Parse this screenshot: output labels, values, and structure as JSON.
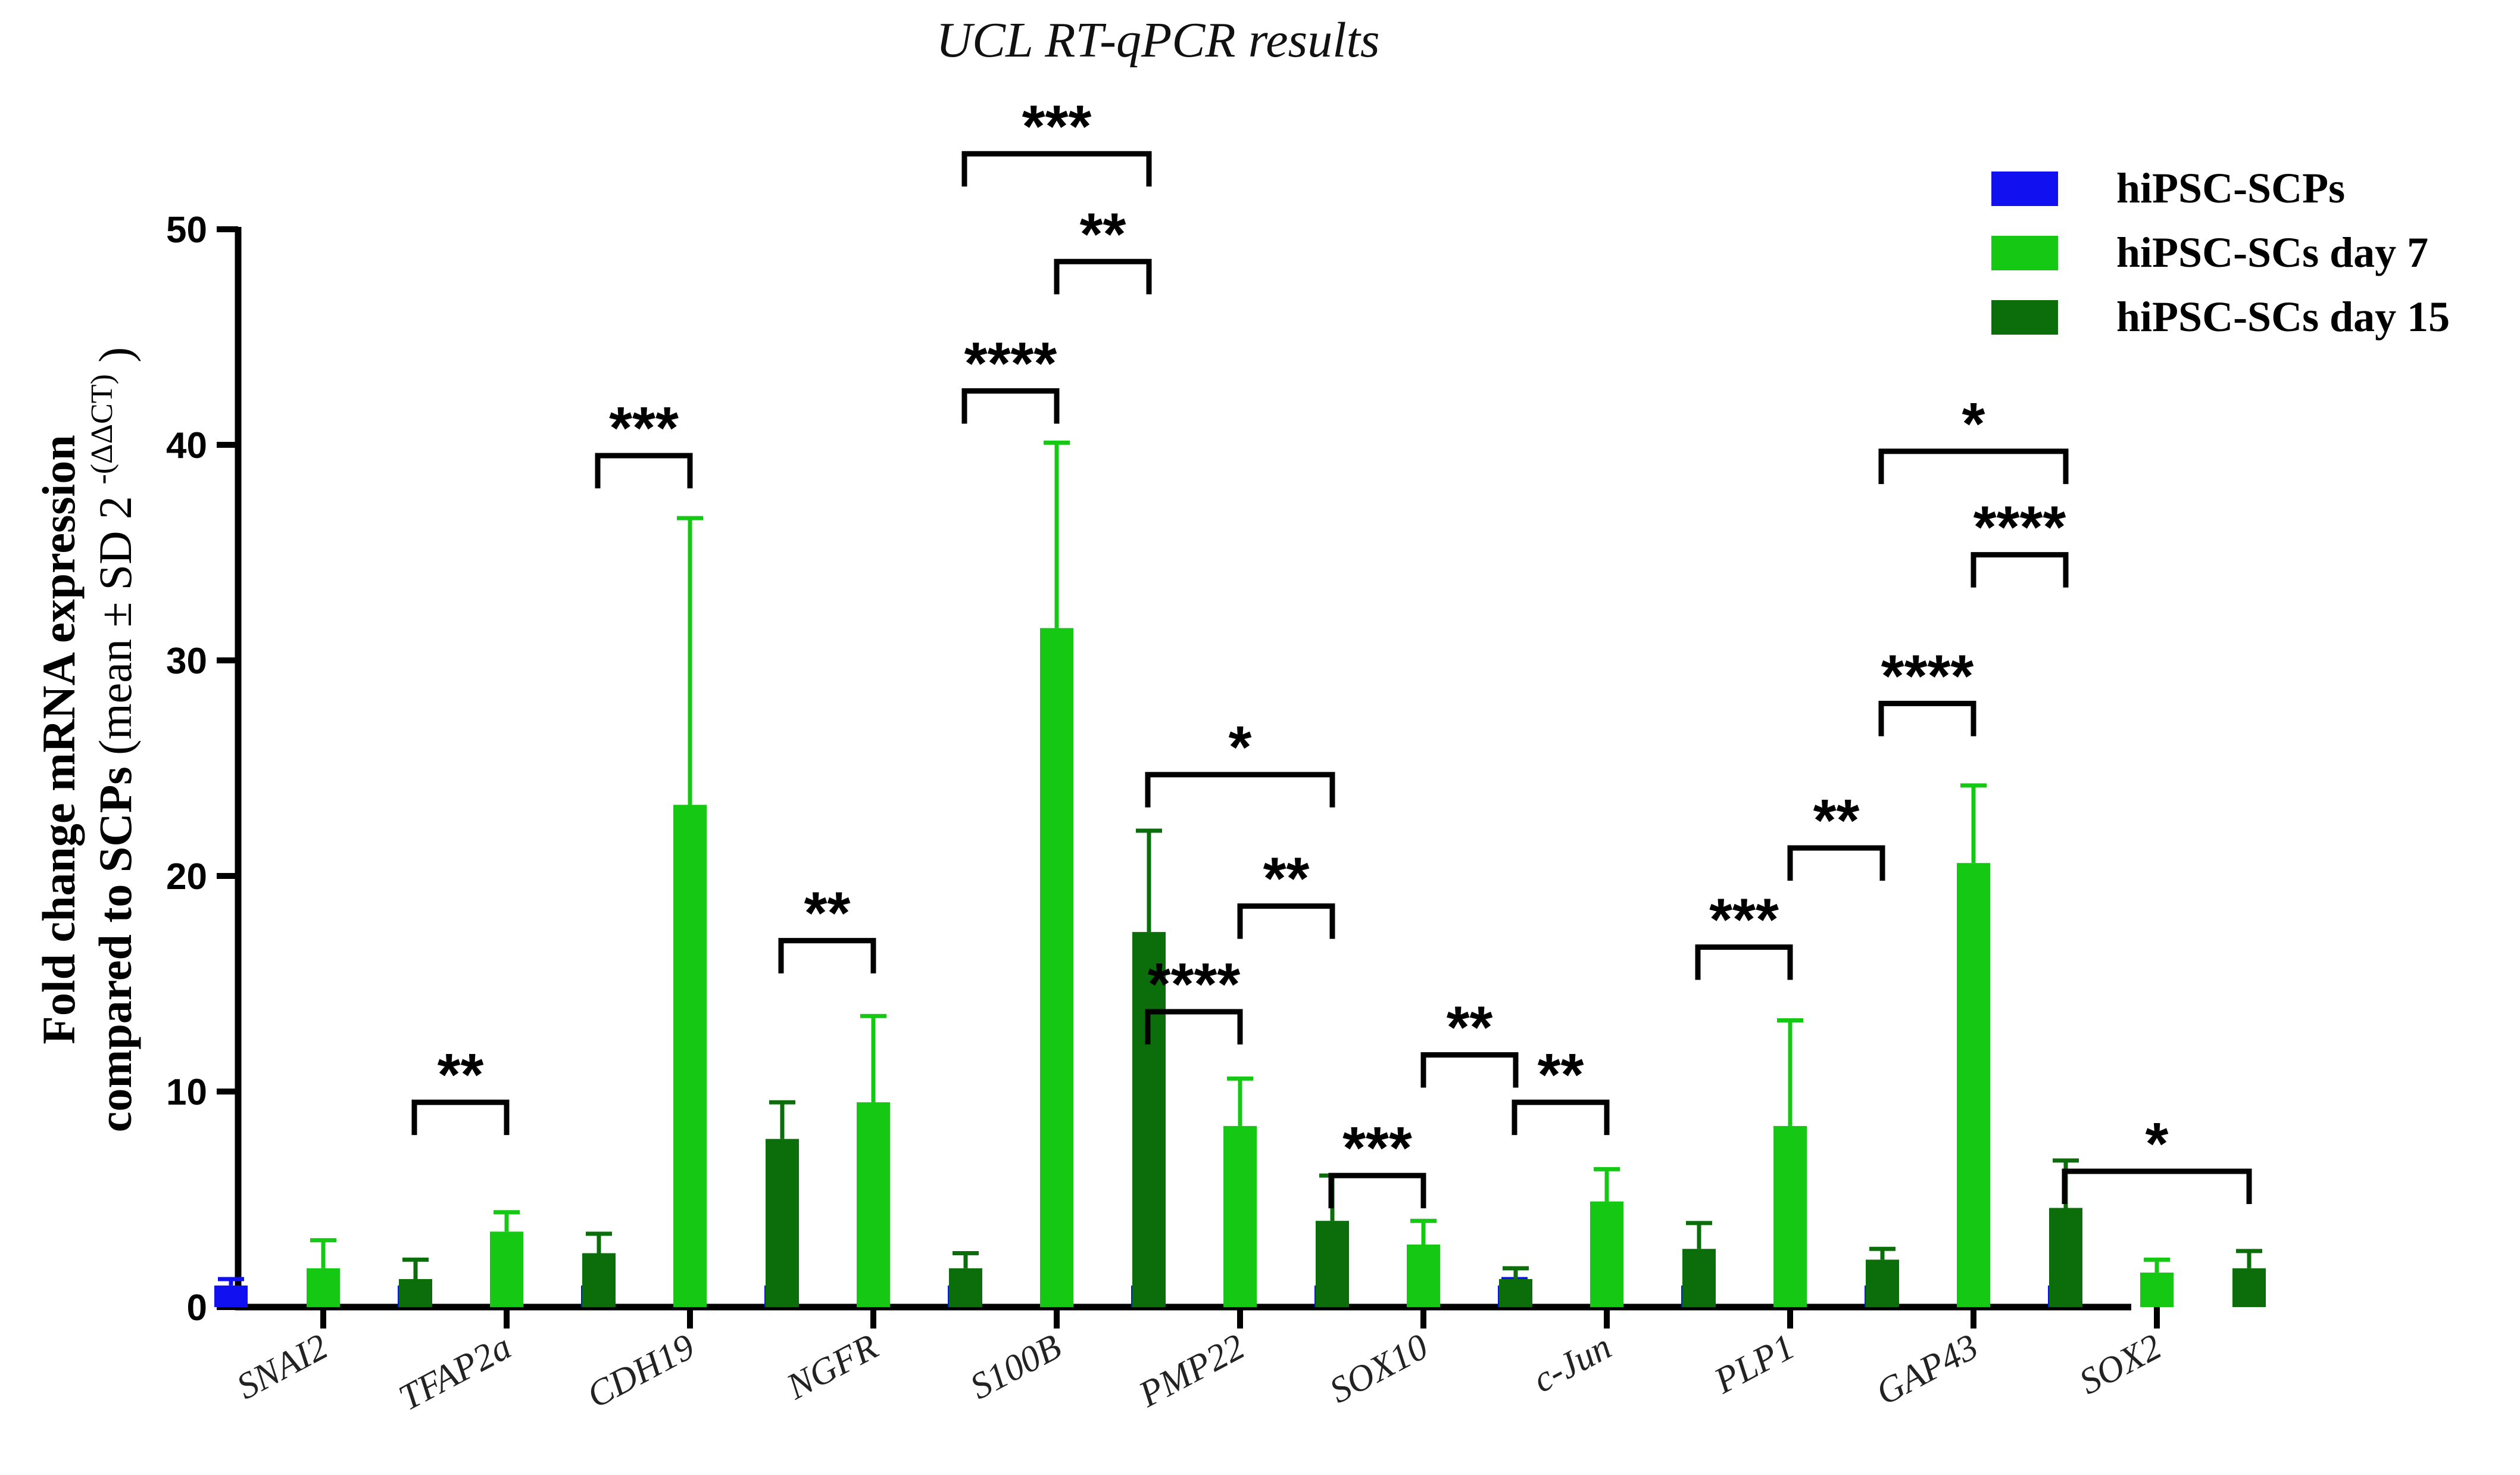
{
  "chart_data": {
    "type": "bar",
    "title": "UCL RT-qPCR results",
    "ylabel": {
      "line1": "Fold change mRNA expression",
      "line2_bold": "compared to SCPs",
      "line2_normal": "(mean ± SD 2",
      "line2_sup": "-(ΔΔCT)",
      "line2_close": ")"
    },
    "ylim": [
      0,
      50
    ],
    "yticks": [
      0,
      10,
      20,
      30,
      40,
      50
    ],
    "categories": [
      "SNAI2",
      "TFAP2a",
      "CDH19",
      "NGFR",
      "S100B",
      "PMP22",
      "SOX10",
      "c-Jun",
      "PLP1",
      "GAP43",
      "SOX2"
    ],
    "series": [
      {
        "name": "hiPSC-SCPs",
        "color": "#1010f0",
        "values": [
          1,
          1,
          1,
          1,
          1,
          1,
          1,
          1,
          1,
          1,
          1
        ],
        "errors": [
          0.3,
          0.2,
          0.5,
          0.2,
          0.2,
          0.3,
          0.2,
          0.3,
          0.2,
          0.2,
          0.2
        ]
      },
      {
        "name": "hiPSC-SCs day 7",
        "color": "#14c814",
        "values": [
          1.8,
          3.5,
          23.3,
          9.5,
          31.5,
          8.4,
          2.9,
          4.9,
          8.4,
          20.6,
          1.6
        ],
        "errors": [
          1.3,
          0.9,
          13.3,
          4.0,
          8.6,
          2.2,
          1.1,
          1.5,
          4.9,
          3.6,
          0.6
        ]
      },
      {
        "name": "hiPSC-SCs day 15",
        "color": "#0b6e0b",
        "values": [
          1.3,
          2.5,
          7.8,
          1.8,
          17.4,
          4.0,
          1.3,
          2.7,
          2.2,
          4.6,
          1.8
        ],
        "errors": [
          0.9,
          0.9,
          1.7,
          0.7,
          4.7,
          2.1,
          0.5,
          1.2,
          0.5,
          2.2,
          0.8
        ]
      }
    ],
    "significance": [
      {
        "cat": 1,
        "from": 0,
        "to": 1,
        "y": 9.5,
        "label": "**"
      },
      {
        "cat": 2,
        "from": 0,
        "to": 1,
        "y": 39.5,
        "label": "***"
      },
      {
        "cat": 3,
        "from": 0,
        "to": 1,
        "y": 17,
        "label": "**"
      },
      {
        "cat": 4,
        "from": 0,
        "to": 1,
        "y": 42.5,
        "label": "****"
      },
      {
        "cat": 4,
        "from": 1,
        "to": 2,
        "y": 48.5,
        "label": "**"
      },
      {
        "cat": 4,
        "from": 0,
        "to": 2,
        "y": 53.5,
        "label": "***"
      },
      {
        "cat": 5,
        "from": 0,
        "to": 1,
        "y": 13.7,
        "label": "****"
      },
      {
        "cat": 5,
        "from": 1,
        "to": 2,
        "y": 18.6,
        "label": "**"
      },
      {
        "cat": 5,
        "from": 0,
        "to": 2,
        "y": 24.7,
        "label": "*"
      },
      {
        "cat": 6,
        "from": 0,
        "to": 1,
        "y": 6.1,
        "label": "***"
      },
      {
        "cat": 6,
        "from": 1,
        "to": 2,
        "y": 11.7,
        "label": "**"
      },
      {
        "cat": 7,
        "from": 0,
        "to": 1,
        "y": 9.5,
        "label": "**"
      },
      {
        "cat": 8,
        "from": 0,
        "to": 1,
        "y": 16.7,
        "label": "***"
      },
      {
        "cat": 8,
        "from": 1,
        "to": 2,
        "y": 21.3,
        "label": "**"
      },
      {
        "cat": 9,
        "from": 0,
        "to": 1,
        "y": 28,
        "label": "****"
      },
      {
        "cat": 9,
        "from": 1,
        "to": 2,
        "y": 34.9,
        "label": "****"
      },
      {
        "cat": 9,
        "from": 0,
        "to": 2,
        "y": 39.7,
        "label": "*"
      },
      {
        "cat": 10,
        "from": 0,
        "to": 2,
        "y": 6.3,
        "label": "*"
      }
    ],
    "legend_position": "top-right",
    "grid": false
  }
}
